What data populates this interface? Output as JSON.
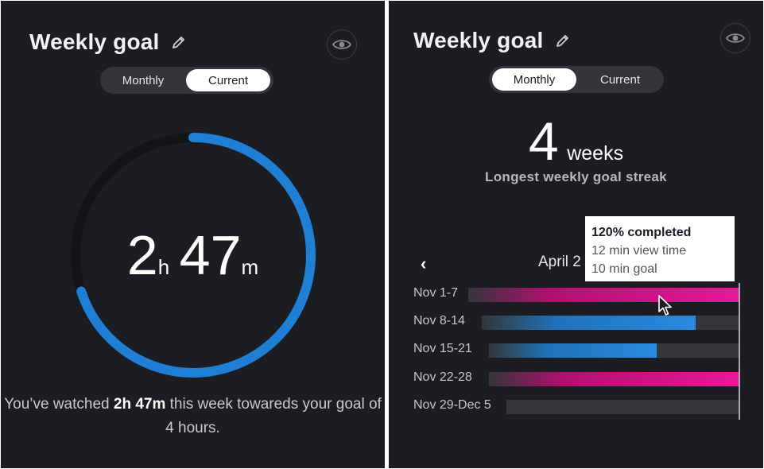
{
  "left": {
    "title": "Weekly goal",
    "toggle": {
      "monthly": "Monthly",
      "current": "Current",
      "active": "current"
    },
    "progress": {
      "fraction": 0.7,
      "hours_num": "2",
      "hours_unit": "h",
      "minutes_num": "47",
      "minutes_unit": "m"
    },
    "message": {
      "prefix": "You’ve watched ",
      "bold": "2h 47m",
      "suffix": " this week towareds your goal of 4 hours."
    },
    "colors": {
      "ring": "#1f7fd4",
      "track": "#141518"
    }
  },
  "right": {
    "title": "Weekly goal",
    "toggle": {
      "monthly": "Monthly",
      "current": "Current",
      "active": "monthly"
    },
    "streak": {
      "value": "4",
      "unit": "weeks",
      "label": "Longest weekly goal streak"
    },
    "nav": {
      "prev_icon": "chevron-left-icon",
      "month": "April 2"
    },
    "weeks": [
      {
        "label": "Nov 1-7",
        "fraction": 1.0,
        "color": "pink"
      },
      {
        "label": "Nov 8-14",
        "fraction": 0.83,
        "color": "blue"
      },
      {
        "label": "Nov 15-21",
        "fraction": 0.67,
        "color": "blue"
      },
      {
        "label": "Nov 22-28",
        "fraction": 1.0,
        "color": "pink"
      },
      {
        "label": "Nov 29-Dec 5",
        "fraction": 0.0,
        "color": "blue"
      }
    ],
    "tooltip": {
      "completed": "120% completed",
      "view_time": "12 min view time",
      "goal": "10 min goal"
    }
  },
  "icons": {
    "edit": "pencil-icon",
    "visibility": "eye-icon",
    "cursor": "mouse-pointer-icon"
  }
}
